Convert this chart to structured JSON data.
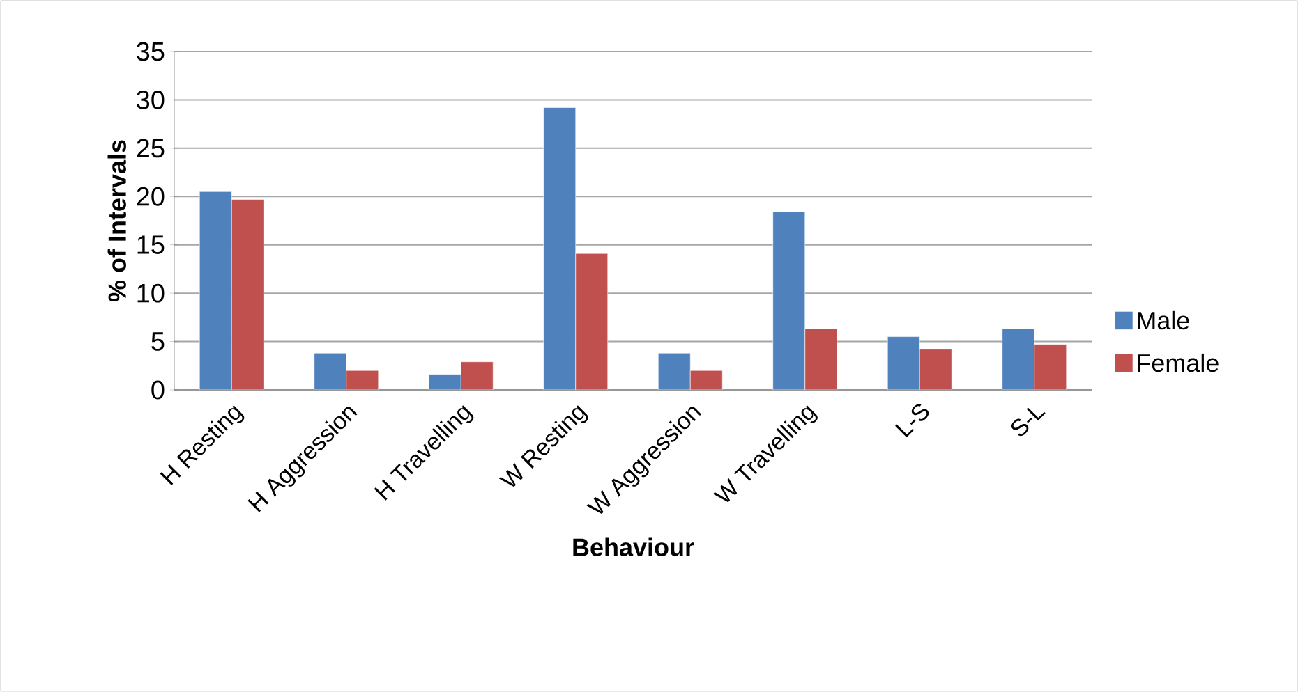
{
  "chart_data": {
    "type": "bar",
    "xlabel": "Behaviour",
    "ylabel": "% of Intervals",
    "categories": [
      "H Resting",
      "H Aggression",
      "H Travelling",
      "W Resting",
      "W Aggression",
      "W Travelling",
      "L-S",
      "S-L"
    ],
    "series": [
      {
        "name": "Male",
        "color": "#4f81bd",
        "values": [
          20.5,
          3.8,
          1.6,
          29.2,
          3.8,
          18.4,
          5.5,
          6.3
        ]
      },
      {
        "name": "Female",
        "color": "#c0504d",
        "values": [
          19.7,
          2.0,
          2.9,
          14.1,
          2.0,
          6.3,
          4.2,
          4.7
        ]
      }
    ],
    "ylim": [
      0,
      35
    ],
    "yticks": [
      0,
      5,
      10,
      15,
      20,
      25,
      30,
      35
    ],
    "grid": "y",
    "legend": "right"
  }
}
